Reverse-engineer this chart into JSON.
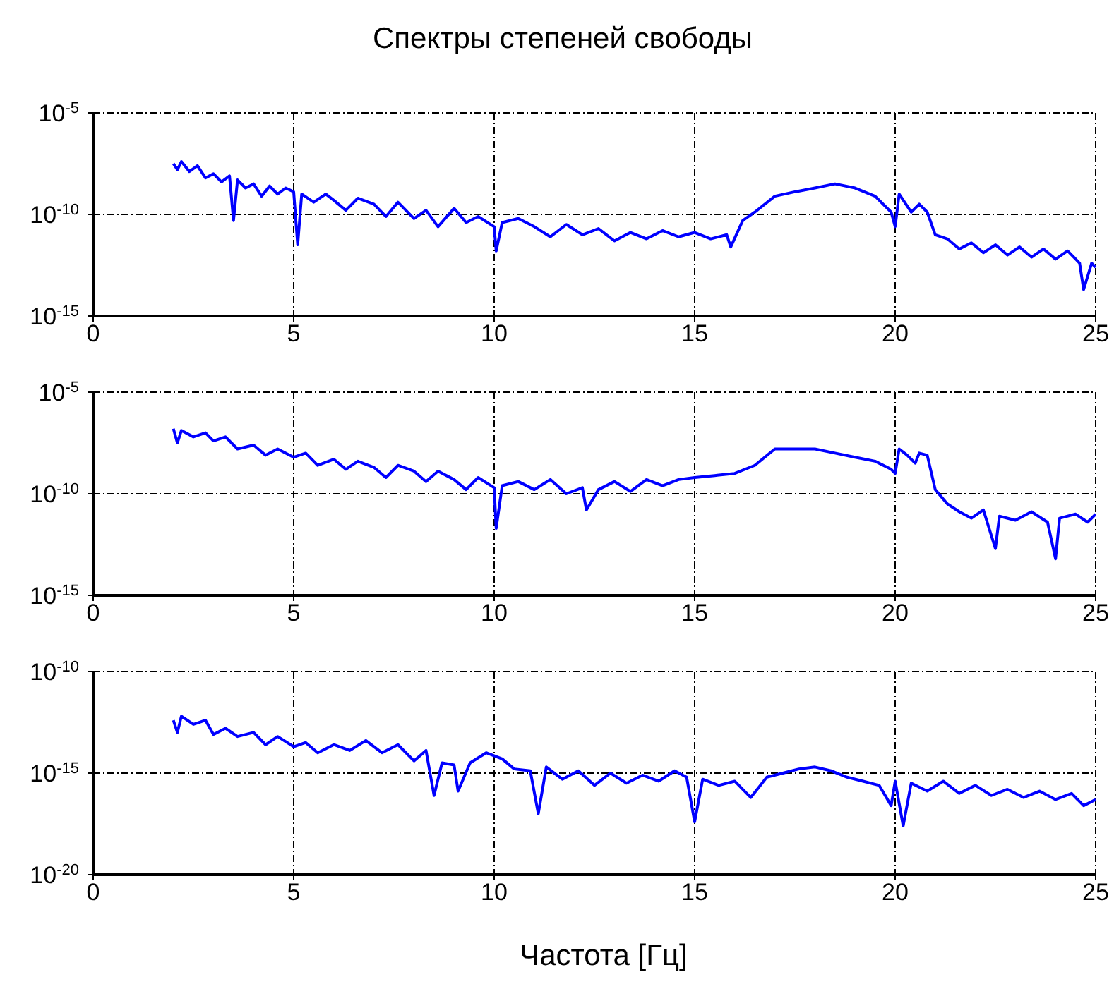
{
  "chart_data": [
    {
      "type": "line",
      "title": "Спектры степеней свободы",
      "log": true,
      "grid": true,
      "xlim": [
        0,
        25
      ],
      "xticks": [
        0,
        5,
        10,
        15,
        20,
        25
      ],
      "ylim": [
        1e-15,
        1e-05
      ],
      "yticks": [
        {
          "value": 1e-15,
          "label": "10$^{-15}$"
        },
        {
          "value": 1e-10,
          "label": "10$^{-10}$"
        },
        {
          "value": 1e-05,
          "label": "10$^{-5}$"
        }
      ],
      "x": [
        2.0,
        2.1,
        2.2,
        2.4,
        2.6,
        2.8,
        3.0,
        3.2,
        3.4,
        3.5,
        3.6,
        3.8,
        4.0,
        4.2,
        4.4,
        4.6,
        4.8,
        5.0,
        5.1,
        5.2,
        5.5,
        5.8,
        6.0,
        6.3,
        6.6,
        7.0,
        7.3,
        7.6,
        8.0,
        8.3,
        8.6,
        9.0,
        9.3,
        9.6,
        10.0,
        10.05,
        10.2,
        10.6,
        11.0,
        11.4,
        11.8,
        12.2,
        12.6,
        13.0,
        13.4,
        13.8,
        14.2,
        14.6,
        15.0,
        15.4,
        15.8,
        15.9,
        16.2,
        16.5,
        17.0,
        17.5,
        18.0,
        18.5,
        19.0,
        19.5,
        19.9,
        20.0,
        20.1,
        20.4,
        20.6,
        20.8,
        21.0,
        21.3,
        21.6,
        21.9,
        22.2,
        22.5,
        22.8,
        23.1,
        23.4,
        23.7,
        24.0,
        24.3,
        24.6,
        24.7,
        24.9,
        25.0
      ],
      "series": [
        {
          "color": "#0000ff",
          "values": [
            3.2e-08,
            1.6e-08,
            4e-08,
            1.3e-08,
            2.5e-08,
            6.3e-09,
            1e-08,
            4e-09,
            7.9e-09,
            5e-11,
            5e-09,
            2e-09,
            3.2e-09,
            7.9e-10,
            2.5e-09,
            1e-09,
            2e-09,
            1.3e-09,
            3.2e-12,
            1e-09,
            4e-10,
            1e-09,
            5e-10,
            1.6e-10,
            6.3e-10,
            3.2e-10,
            7.9e-11,
            4e-10,
            6.3e-11,
            1.6e-10,
            2.5e-11,
            2e-10,
            4e-11,
            7.9e-11,
            2.5e-11,
            1.6e-12,
            4e-11,
            6.3e-11,
            2.5e-11,
            7.9e-12,
            3.2e-11,
            1e-11,
            2e-11,
            5e-12,
            1.3e-11,
            6.3e-12,
            1.6e-11,
            7.9e-12,
            1.3e-11,
            6.3e-12,
            1e-11,
            2.5e-12,
            5e-11,
            1.3e-10,
            7.9e-10,
            1.3e-09,
            2e-09,
            3.2e-09,
            2e-09,
            7.9e-10,
            1.3e-10,
            2.5e-11,
            1e-09,
            1.3e-10,
            3.2e-10,
            1.3e-10,
            1e-11,
            6.3e-12,
            2e-12,
            4e-12,
            1.3e-12,
            3.2e-12,
            1e-12,
            2.5e-12,
            7.9e-13,
            2e-12,
            6.3e-13,
            1.6e-12,
            4e-13,
            2e-14,
            4e-13,
            2.5e-13
          ]
        }
      ]
    },
    {
      "type": "line",
      "log": true,
      "grid": true,
      "xlim": [
        0,
        25
      ],
      "xticks": [
        0,
        5,
        10,
        15,
        20,
        25
      ],
      "ylim": [
        1e-15,
        1e-05
      ],
      "yticks": [
        {
          "value": 1e-15,
          "label": "10$^{-15}$"
        },
        {
          "value": 1e-10,
          "label": "10$^{-10}$"
        },
        {
          "value": 1e-05,
          "label": "10$^{-5}$"
        }
      ],
      "x": [
        2.0,
        2.1,
        2.2,
        2.5,
        2.8,
        3.0,
        3.3,
        3.6,
        4.0,
        4.3,
        4.6,
        5.0,
        5.3,
        5.6,
        6.0,
        6.3,
        6.6,
        7.0,
        7.3,
        7.6,
        8.0,
        8.3,
        8.6,
        9.0,
        9.3,
        9.6,
        10.0,
        10.05,
        10.2,
        10.6,
        11.0,
        11.4,
        11.8,
        12.2,
        12.3,
        12.6,
        13.0,
        13.4,
        13.8,
        14.2,
        14.6,
        15.0,
        15.5,
        16.0,
        16.5,
        17.0,
        17.5,
        18.0,
        18.5,
        19.0,
        19.5,
        19.9,
        20.0,
        20.1,
        20.3,
        20.5,
        20.6,
        20.8,
        21.0,
        21.3,
        21.6,
        21.9,
        22.2,
        22.5,
        22.6,
        23.0,
        23.4,
        23.8,
        24.0,
        24.1,
        24.5,
        24.8,
        25.0
      ],
      "series": [
        {
          "color": "#0000ff",
          "values": [
            1.6e-07,
            3.2e-08,
            1.3e-07,
            6.3e-08,
            1e-07,
            4e-08,
            6.3e-08,
            1.6e-08,
            2.5e-08,
            7.9e-09,
            1.6e-08,
            6.3e-09,
            1e-08,
            2.5e-09,
            5e-09,
            1.6e-09,
            4e-09,
            2e-09,
            6.3e-10,
            2.5e-09,
            1.3e-09,
            4e-10,
            1.3e-09,
            5e-10,
            1.6e-10,
            6.3e-10,
            2e-10,
            2e-12,
            2.5e-10,
            4e-10,
            1.6e-10,
            5e-10,
            1e-10,
            2e-10,
            1.6e-11,
            1.6e-10,
            4e-10,
            1.3e-10,
            5e-10,
            2.5e-10,
            5e-10,
            6.3e-10,
            7.9e-10,
            1e-09,
            2.5e-09,
            1.6e-08,
            1.6e-08,
            1.6e-08,
            1e-08,
            6.3e-09,
            4e-09,
            1.6e-09,
            1e-09,
            1.6e-08,
            7.9e-09,
            3.2e-09,
            1e-08,
            7.9e-09,
            1.6e-10,
            3.2e-11,
            1.3e-11,
            6.3e-12,
            1.6e-11,
            2e-13,
            7.9e-12,
            5e-12,
            1.3e-11,
            4e-12,
            6.3e-14,
            6.3e-12,
            1e-11,
            4e-12,
            1e-11
          ]
        }
      ]
    },
    {
      "type": "line",
      "xlabel": "Частота [Гц]",
      "log": true,
      "grid": true,
      "xlim": [
        0,
        25
      ],
      "xticks": [
        0,
        5,
        10,
        15,
        20,
        25
      ],
      "ylim": [
        1e-20,
        1e-10
      ],
      "yticks": [
        {
          "value": 1e-20,
          "label": "10$^{-20}$"
        },
        {
          "value": 1e-15,
          "label": "10$^{-15}$"
        },
        {
          "value": 1e-10,
          "label": "10$^{-10}$"
        }
      ],
      "x": [
        2.0,
        2.1,
        2.2,
        2.5,
        2.8,
        3.0,
        3.3,
        3.6,
        4.0,
        4.3,
        4.6,
        5.0,
        5.3,
        5.6,
        6.0,
        6.4,
        6.8,
        7.2,
        7.6,
        8.0,
        8.3,
        8.5,
        8.7,
        9.0,
        9.1,
        9.4,
        9.8,
        10.2,
        10.5,
        10.9,
        11.1,
        11.3,
        11.7,
        12.1,
        12.5,
        12.9,
        13.3,
        13.7,
        14.1,
        14.5,
        14.8,
        15.0,
        15.2,
        15.6,
        16.0,
        16.4,
        16.8,
        17.2,
        17.6,
        18.0,
        18.4,
        18.8,
        19.2,
        19.6,
        19.9,
        20.0,
        20.2,
        20.4,
        20.8,
        21.2,
        21.6,
        22.0,
        22.4,
        22.8,
        23.2,
        23.6,
        24.0,
        24.4,
        24.7,
        25.0
      ],
      "series": [
        {
          "color": "#0000ff",
          "values": [
            4e-13,
            1e-13,
            6.3e-13,
            2.5e-13,
            4e-13,
            7.9e-14,
            1.6e-13,
            6.3e-14,
            1e-13,
            2.5e-14,
            6.3e-14,
            2e-14,
            3.2e-14,
            1e-14,
            2.5e-14,
            1.3e-14,
            4e-14,
            1e-14,
            2.5e-14,
            4e-15,
            1.3e-14,
            7.9e-17,
            3.2e-15,
            2.5e-15,
            1.3e-16,
            3.2e-15,
            1e-14,
            5e-15,
            1.6e-15,
            1.3e-15,
            1e-17,
            2e-15,
            5e-16,
            1.3e-15,
            2.5e-16,
            1e-15,
            3.2e-16,
            7.9e-16,
            4e-16,
            1.3e-15,
            6.3e-16,
            4e-18,
            5e-16,
            2.5e-16,
            4e-16,
            6.3e-17,
            6.3e-16,
            1e-15,
            1.6e-15,
            2e-15,
            1.3e-15,
            6.3e-16,
            4e-16,
            2.5e-16,
            2.5e-17,
            4e-16,
            2.5e-18,
            3.2e-16,
            1.3e-16,
            4e-16,
            1e-16,
            2.5e-16,
            7.9e-17,
            1.6e-16,
            6.3e-17,
            1.3e-16,
            5e-17,
            1e-16,
            2.5e-17,
            5e-17
          ]
        }
      ]
    }
  ]
}
